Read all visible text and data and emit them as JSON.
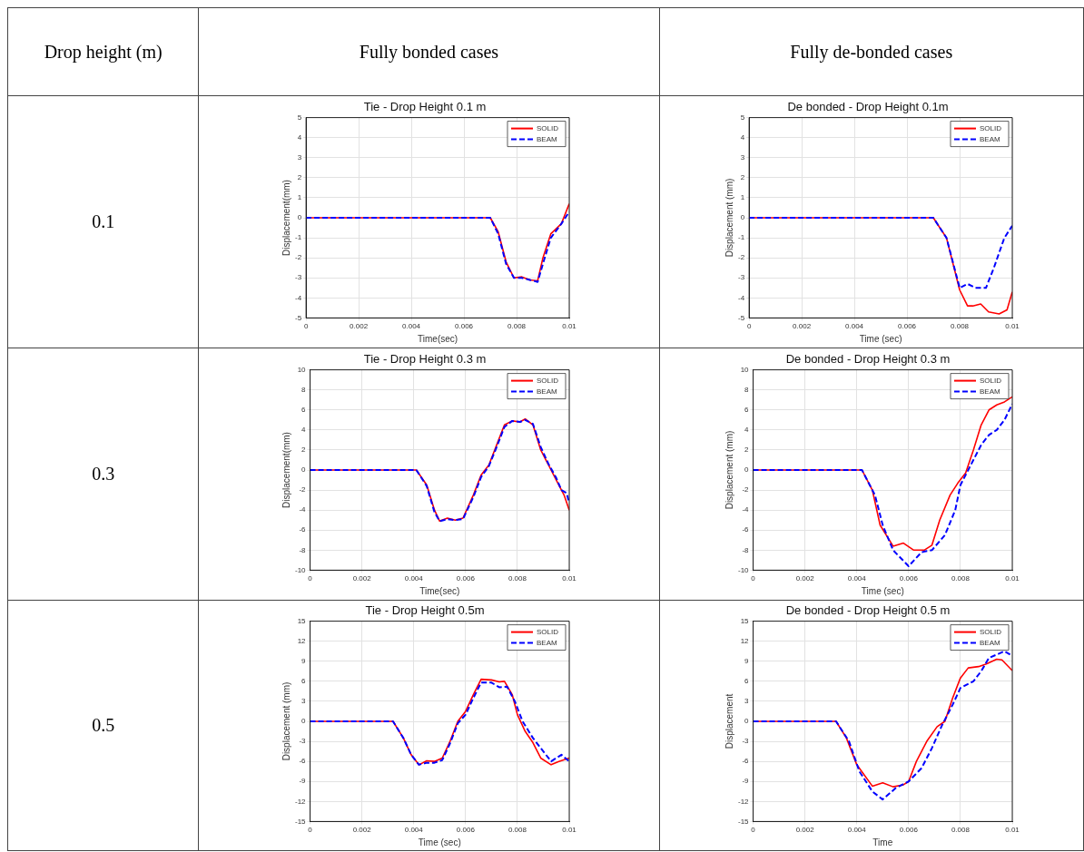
{
  "chart_data": [
    {
      "type": "other",
      "annotations": [
        "Drop height (m)",
        "Fully bonded cases",
        "Fully de-bonded cases",
        "0.1",
        "0.3",
        "0.5"
      ]
    },
    {
      "type": "line",
      "title": "Tie - Drop Height 0.1 m",
      "xlabel": "Time(sec)",
      "ylabel": "Displacement(mm)",
      "xlim": [
        0,
        0.01
      ],
      "xticks": [
        0,
        0.002,
        0.004,
        0.006,
        0.008,
        0.01
      ],
      "ylim": [
        -5,
        5
      ],
      "yticks": [
        -5,
        -4,
        -3,
        -2,
        -1,
        0,
        1,
        2,
        3,
        4,
        5
      ],
      "grid": true,
      "legend": "top right",
      "marker": "none",
      "series": [
        {
          "name": "SOLID",
          "color": "#ff0000",
          "line_style": "solid",
          "x": [
            0,
            0.007,
            0.0073,
            0.0076,
            0.0079,
            0.0082,
            0.0085,
            0.0088,
            0.009,
            0.0093,
            0.0097,
            0.01
          ],
          "values": [
            0,
            0,
            -0.7,
            -2.2,
            -3.0,
            -2.95,
            -3.1,
            -3.15,
            -2.0,
            -0.8,
            -0.3,
            0.7
          ]
        },
        {
          "name": "BEAM",
          "color": "#0000ff",
          "line_style": "dashed",
          "x": [
            0,
            0.007,
            0.0073,
            0.0076,
            0.0079,
            0.0082,
            0.0085,
            0.0088,
            0.009,
            0.0093,
            0.0097,
            0.01
          ],
          "values": [
            0,
            0,
            -0.8,
            -2.3,
            -3.0,
            -3.0,
            -3.1,
            -3.2,
            -2.3,
            -1.0,
            -0.3,
            0.3
          ]
        }
      ]
    },
    {
      "type": "line",
      "title": "De bonded - Drop Height 0.1m",
      "xlabel": "Time (sec)",
      "ylabel": "Displacement (mm)",
      "xlim": [
        0,
        0.01
      ],
      "xticks": [
        0,
        0.002,
        0.004,
        0.006,
        0.008,
        0.01
      ],
      "ylim": [
        -5,
        5
      ],
      "yticks": [
        -5,
        -4,
        -3,
        -2,
        -1,
        0,
        1,
        2,
        3,
        4,
        5
      ],
      "grid": true,
      "legend": "top right",
      "marker": "none",
      "series": [
        {
          "name": "SOLID",
          "color": "#ff0000",
          "line_style": "solid",
          "x": [
            0,
            0.007,
            0.0075,
            0.008,
            0.0083,
            0.0085,
            0.0088,
            0.0091,
            0.0095,
            0.0098,
            0.01
          ],
          "values": [
            0,
            0,
            -1.0,
            -3.6,
            -4.4,
            -4.4,
            -4.3,
            -4.7,
            -4.8,
            -4.6,
            -3.7
          ]
        },
        {
          "name": "BEAM",
          "color": "#0000ff",
          "line_style": "dashed",
          "x": [
            0,
            0.007,
            0.0075,
            0.008,
            0.0083,
            0.0086,
            0.009,
            0.0093,
            0.0097,
            0.01
          ],
          "values": [
            0,
            0,
            -1.0,
            -3.5,
            -3.3,
            -3.5,
            -3.5,
            -2.5,
            -1.0,
            -0.4
          ]
        }
      ]
    },
    {
      "type": "line",
      "title": "Tie - Drop Height 0.3 m",
      "xlabel": "Time(sec)",
      "ylabel": "Displacement(mm)",
      "xlim": [
        0,
        0.01
      ],
      "xticks": [
        0,
        0.002,
        0.004,
        0.006,
        0.008,
        0.01
      ],
      "ylim": [
        -10,
        10
      ],
      "yticks": [
        -10,
        -8,
        -6,
        -4,
        -2,
        0,
        2,
        4,
        6,
        8,
        10
      ],
      "grid": true,
      "legend": "top right",
      "marker": "none",
      "series": [
        {
          "name": "SOLID",
          "color": "#ff0000",
          "line_style": "solid",
          "x": [
            0,
            0.0041,
            0.0045,
            0.0048,
            0.005,
            0.0053,
            0.0056,
            0.0059,
            0.0063,
            0.0066,
            0.0069,
            0.0072,
            0.0075,
            0.0078,
            0.0081,
            0.0083,
            0.0086,
            0.0089,
            0.0092,
            0.0095,
            0.0098,
            0.01
          ],
          "values": [
            0,
            0,
            -1.5,
            -4,
            -5.1,
            -4.8,
            -5.0,
            -4.8,
            -2.5,
            -0.5,
            0.5,
            2.5,
            4.5,
            4.9,
            4.8,
            5.1,
            4.5,
            2,
            0.5,
            -1,
            -2.5,
            -4
          ]
        },
        {
          "name": "BEAM",
          "color": "#0000ff",
          "line_style": "dashed",
          "x": [
            0,
            0.0041,
            0.0045,
            0.0048,
            0.005,
            0.0053,
            0.0056,
            0.0059,
            0.0063,
            0.0066,
            0.0069,
            0.0072,
            0.0075,
            0.0078,
            0.0081,
            0.0083,
            0.0086,
            0.0089,
            0.0092,
            0.0095,
            0.0097,
            0.0099,
            0.01
          ],
          "values": [
            0,
            0,
            -1.6,
            -4.2,
            -5.1,
            -4.9,
            -5.0,
            -4.9,
            -2.7,
            -0.7,
            0.4,
            2.3,
            4.3,
            4.9,
            4.8,
            5.0,
            4.6,
            2.3,
            0.6,
            -0.8,
            -2.0,
            -2.3,
            -3.3
          ]
        }
      ]
    },
    {
      "type": "line",
      "title": "De bonded - Drop Height 0.3 m",
      "xlabel": "Time (sec)",
      "ylabel": "Displacement (mm)",
      "xlim": [
        0,
        0.01
      ],
      "xticks": [
        0,
        0.002,
        0.004,
        0.006,
        0.008,
        0.01
      ],
      "ylim": [
        -10,
        10
      ],
      "yticks": [
        -10,
        -8,
        -6,
        -4,
        -2,
        0,
        2,
        4,
        6,
        8,
        10
      ],
      "grid": true,
      "legend": "top right",
      "marker": "none",
      "series": [
        {
          "name": "SOLID",
          "color": "#ff0000",
          "line_style": "solid",
          "x": [
            0,
            0.0042,
            0.0046,
            0.0049,
            0.0054,
            0.0058,
            0.0062,
            0.0066,
            0.0069,
            0.0072,
            0.0076,
            0.0079,
            0.0082,
            0.0085,
            0.0088,
            0.0091,
            0.0094,
            0.0097,
            0.01
          ],
          "values": [
            0,
            0,
            -2,
            -5.5,
            -7.6,
            -7.3,
            -8.0,
            -8.0,
            -7.5,
            -5,
            -2.5,
            -1.3,
            -0.3,
            2,
            4.5,
            6,
            6.5,
            6.8,
            7.3
          ]
        },
        {
          "name": "BEAM",
          "color": "#0000ff",
          "line_style": "dashed",
          "x": [
            0,
            0.0042,
            0.0047,
            0.005,
            0.0054,
            0.006,
            0.0065,
            0.0069,
            0.0074,
            0.0078,
            0.008,
            0.0084,
            0.0088,
            0.0091,
            0.0094,
            0.0097,
            0.01
          ],
          "values": [
            0,
            0,
            -2.5,
            -5.5,
            -8,
            -9.6,
            -8.2,
            -8.0,
            -6.5,
            -4,
            -1.5,
            0.5,
            2.5,
            3.5,
            4,
            5,
            6.6
          ]
        }
      ]
    },
    {
      "type": "line",
      "title": "Tie - Drop Height 0.5m",
      "xlabel": "Time (sec)",
      "ylabel": "Displacement (mm)",
      "xlim": [
        0,
        0.01
      ],
      "xticks": [
        0,
        0.002,
        0.004,
        0.006,
        0.008,
        0.01
      ],
      "ylim": [
        -15,
        15
      ],
      "yticks": [
        -15,
        -12,
        -9,
        -6,
        -3,
        0,
        3,
        6,
        9,
        12,
        15
      ],
      "grid": true,
      "legend": "top right",
      "marker": "none",
      "series": [
        {
          "name": "SOLID",
          "color": "#ff0000",
          "line_style": "solid",
          "x": [
            0,
            0.0032,
            0.0036,
            0.0039,
            0.0042,
            0.0045,
            0.0048,
            0.0051,
            0.0054,
            0.0057,
            0.006,
            0.0063,
            0.0066,
            0.007,
            0.0073,
            0.0075,
            0.0078,
            0.008,
            0.0083,
            0.0086,
            0.0089,
            0.0093,
            0.0096,
            0.01
          ],
          "values": [
            0,
            0,
            -2.5,
            -5,
            -6.5,
            -5.9,
            -6,
            -5.5,
            -3,
            0,
            1.5,
            4,
            6.3,
            6.2,
            5.9,
            6,
            4,
            1,
            -1.5,
            -3.2,
            -5.5,
            -6.5,
            -6,
            -5.5
          ]
        },
        {
          "name": "BEAM",
          "color": "#0000ff",
          "line_style": "dashed",
          "x": [
            0,
            0.0032,
            0.0036,
            0.0039,
            0.0042,
            0.0045,
            0.0048,
            0.0051,
            0.0054,
            0.0057,
            0.006,
            0.0063,
            0.0066,
            0.007,
            0.0073,
            0.0076,
            0.0079,
            0.0082,
            0.0086,
            0.009,
            0.0093,
            0.0097,
            0.01
          ],
          "values": [
            0,
            0,
            -2.5,
            -5,
            -6.5,
            -6.2,
            -6.2,
            -5.8,
            -3.3,
            -0.3,
            1,
            3.5,
            5.8,
            5.8,
            5.1,
            5.2,
            3,
            0,
            -2.5,
            -4.5,
            -6,
            -5,
            -6
          ]
        }
      ]
    },
    {
      "type": "line",
      "title": "De bonded - Drop Height 0.5 m",
      "xlabel": "Time",
      "ylabel": "Displacement",
      "xlim": [
        0,
        0.01
      ],
      "xticks": [
        0,
        0.002,
        0.004,
        0.006,
        0.008,
        0.01
      ],
      "ylim": [
        -15,
        15
      ],
      "yticks": [
        -15,
        -12,
        -9,
        -6,
        -3,
        0,
        3,
        6,
        9,
        12,
        15
      ],
      "grid": true,
      "legend": "top right",
      "marker": "none",
      "series": [
        {
          "name": "SOLID",
          "color": "#ff0000",
          "line_style": "solid",
          "x": [
            0,
            0.0032,
            0.0036,
            0.004,
            0.0046,
            0.005,
            0.0054,
            0.0058,
            0.006,
            0.0063,
            0.0067,
            0.0071,
            0.0074,
            0.0077,
            0.008,
            0.0083,
            0.0087,
            0.009,
            0.0094,
            0.0096,
            0.01
          ],
          "values": [
            0,
            0,
            -2.5,
            -6.5,
            -9.7,
            -9.2,
            -9.8,
            -9.5,
            -9,
            -6,
            -3,
            -0.8,
            0,
            3.5,
            6.5,
            8,
            8.2,
            8.6,
            9.3,
            9.2,
            7.6
          ]
        },
        {
          "name": "BEAM",
          "color": "#0000ff",
          "line_style": "dashed",
          "x": [
            0,
            0.0032,
            0.0037,
            0.0041,
            0.0046,
            0.005,
            0.0055,
            0.006,
            0.0065,
            0.0069,
            0.0073,
            0.0077,
            0.008,
            0.0085,
            0.0088,
            0.0091,
            0.0094,
            0.0097,
            0.01
          ],
          "values": [
            0,
            0,
            -3,
            -7.5,
            -10.5,
            -11.7,
            -10,
            -9,
            -7,
            -4,
            -0.5,
            2.5,
            5,
            6,
            7.5,
            9.5,
            10,
            10.5,
            9.8
          ]
        }
      ]
    }
  ]
}
